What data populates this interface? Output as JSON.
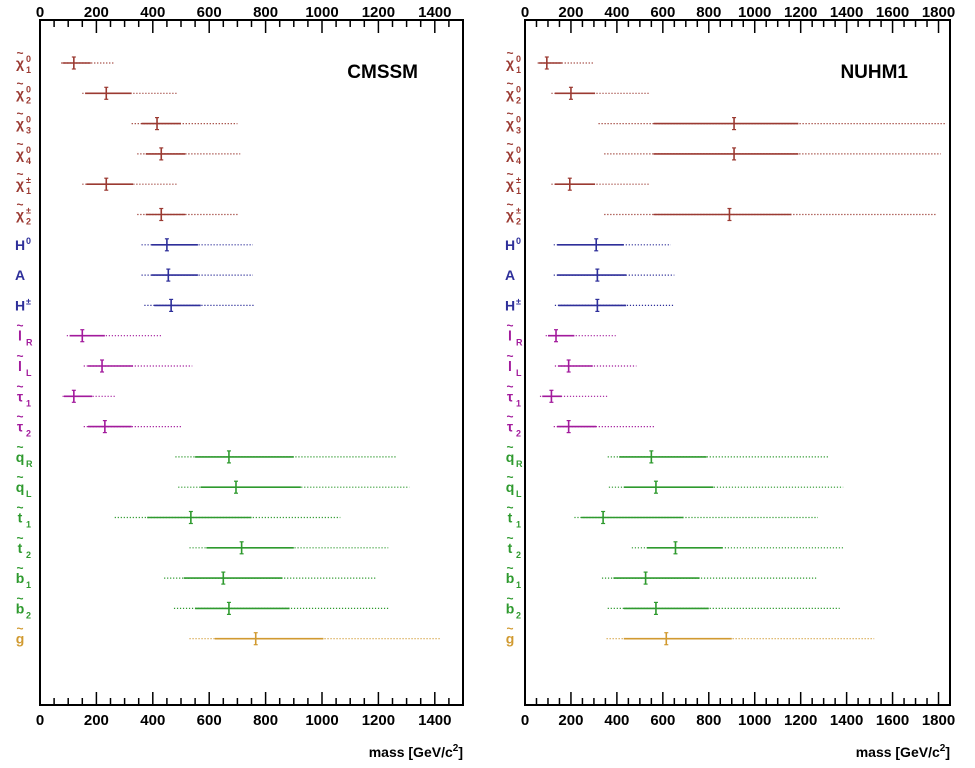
{
  "chart_data": [
    {
      "type": "scatter",
      "title": "CMSSM",
      "xlabel": "mass [GeV/c",
      "xlabel_sup": "2",
      "xlabel_close": "]",
      "xlim": [
        0,
        1500
      ],
      "xticks": [
        0,
        200,
        400,
        600,
        800,
        1000,
        1200,
        1400
      ],
      "xtick_labels": [
        "0",
        "200",
        "400",
        "600",
        "800",
        "1000",
        "1200",
        "1400"
      ],
      "x_minor_step": 50,
      "particles": [
        {
          "label": "χ",
          "sub": "1",
          "sup": "0",
          "tilde": true,
          "group": "gaugino",
          "best": 120,
          "s1": [
            80,
            180
          ],
          "s2": [
            75,
            265
          ]
        },
        {
          "label": "χ",
          "sub": "2",
          "sup": "0",
          "tilde": true,
          "group": "gaugino",
          "best": 235,
          "s1": [
            160,
            325
          ],
          "s2": [
            150,
            485
          ]
        },
        {
          "label": "χ",
          "sub": "3",
          "sup": "0",
          "tilde": true,
          "group": "gaugino",
          "best": 415,
          "s1": [
            360,
            500
          ],
          "s2": [
            325,
            700
          ]
        },
        {
          "label": "χ",
          "sub": "4",
          "sup": "0",
          "tilde": true,
          "group": "gaugino",
          "best": 430,
          "s1": [
            375,
            515
          ],
          "s2": [
            345,
            710
          ]
        },
        {
          "label": "χ",
          "sub": "1",
          "sup": "±",
          "tilde": true,
          "group": "gaugino",
          "best": 235,
          "s1": [
            165,
            330
          ],
          "s2": [
            150,
            490
          ]
        },
        {
          "label": "χ",
          "sub": "2",
          "sup": "±",
          "tilde": true,
          "group": "gaugino",
          "best": 430,
          "s1": [
            375,
            515
          ],
          "s2": [
            345,
            705
          ]
        },
        {
          "label": "H",
          "sub": "",
          "sup": "0",
          "tilde": false,
          "group": "higgs",
          "best": 450,
          "s1": [
            395,
            560
          ],
          "s2": [
            360,
            755
          ]
        },
        {
          "label": "A",
          "sub": "",
          "sup": "",
          "tilde": false,
          "group": "higgs",
          "best": 455,
          "s1": [
            395,
            560
          ],
          "s2": [
            360,
            755
          ]
        },
        {
          "label": "H",
          "sub": "",
          "sup": "±",
          "tilde": false,
          "group": "higgs",
          "best": 465,
          "s1": [
            405,
            570
          ],
          "s2": [
            370,
            760
          ]
        },
        {
          "label": "l",
          "sub": "R",
          "sup": "",
          "tilde": true,
          "group": "slepton",
          "best": 150,
          "s1": [
            105,
            230
          ],
          "s2": [
            95,
            435
          ]
        },
        {
          "label": "l",
          "sub": "L",
          "sup": "",
          "tilde": true,
          "group": "slepton",
          "best": 220,
          "s1": [
            170,
            330
          ],
          "s2": [
            155,
            540
          ]
        },
        {
          "label": "τ",
          "sub": "1",
          "sup": "",
          "tilde": true,
          "group": "slepton",
          "best": 120,
          "s1": [
            85,
            185
          ],
          "s2": [
            80,
            270
          ]
        },
        {
          "label": "τ",
          "sub": "2",
          "sup": "",
          "tilde": true,
          "group": "slepton",
          "best": 230,
          "s1": [
            170,
            325
          ],
          "s2": [
            155,
            500
          ]
        },
        {
          "label": "q",
          "sub": "R",
          "sup": "",
          "tilde": true,
          "group": "squark",
          "best": 670,
          "s1": [
            550,
            900
          ],
          "s2": [
            480,
            1265
          ]
        },
        {
          "label": "q",
          "sub": "L",
          "sup": "",
          "tilde": true,
          "group": "squark",
          "best": 695,
          "s1": [
            570,
            925
          ],
          "s2": [
            490,
            1310
          ]
        },
        {
          "label": "t",
          "sub": "1",
          "sup": "",
          "tilde": true,
          "group": "squark",
          "best": 535,
          "s1": [
            380,
            750
          ],
          "s2": [
            265,
            1065
          ]
        },
        {
          "label": "t",
          "sub": "2",
          "sup": "",
          "tilde": true,
          "group": "squark",
          "best": 715,
          "s1": [
            590,
            900
          ],
          "s2": [
            530,
            1235
          ]
        },
        {
          "label": "b",
          "sub": "1",
          "sup": "",
          "tilde": true,
          "group": "squark",
          "best": 650,
          "s1": [
            510,
            860
          ],
          "s2": [
            440,
            1195
          ]
        },
        {
          "label": "b",
          "sub": "2",
          "sup": "",
          "tilde": true,
          "group": "squark",
          "best": 670,
          "s1": [
            550,
            885
          ],
          "s2": [
            475,
            1235
          ]
        },
        {
          "label": "g",
          "sub": "",
          "sup": "",
          "tilde": true,
          "group": "gluino",
          "best": 765,
          "s1": [
            620,
            1005
          ],
          "s2": [
            530,
            1420
          ]
        }
      ]
    },
    {
      "type": "scatter",
      "title": "NUHM1",
      "xlabel": "mass [GeV/c",
      "xlabel_sup": "2",
      "xlabel_close": "]",
      "xlim": [
        0,
        1850
      ],
      "xticks": [
        0,
        200,
        400,
        600,
        800,
        1000,
        1200,
        1400,
        1600,
        1800
      ],
      "xtick_labels": [
        "0",
        "200",
        "400",
        "600",
        "800",
        "1000",
        "1200",
        "1400",
        "1600",
        "1800"
      ],
      "x_minor_step": 50,
      "particles": [
        {
          "label": "χ",
          "sub": "1",
          "sup": "0",
          "tilde": true,
          "group": "gaugino",
          "best": 95,
          "s1": [
            60,
            160
          ],
          "s2": [
            55,
            300
          ]
        },
        {
          "label": "χ",
          "sub": "2",
          "sup": "0",
          "tilde": true,
          "group": "gaugino",
          "best": 200,
          "s1": [
            130,
            305
          ],
          "s2": [
            115,
            545
          ]
        },
        {
          "label": "χ",
          "sub": "3",
          "sup": "0",
          "tilde": true,
          "group": "gaugino",
          "best": 910,
          "s1": [
            560,
            1190
          ],
          "s2": [
            320,
            1835
          ]
        },
        {
          "label": "χ",
          "sub": "4",
          "sup": "0",
          "tilde": true,
          "group": "gaugino",
          "best": 910,
          "s1": [
            560,
            1190
          ],
          "s2": [
            345,
            1810
          ]
        },
        {
          "label": "χ",
          "sub": "1",
          "sup": "±",
          "tilde": true,
          "group": "gaugino",
          "best": 195,
          "s1": [
            130,
            305
          ],
          "s2": [
            115,
            545
          ]
        },
        {
          "label": "χ",
          "sub": "2",
          "sup": "±",
          "tilde": true,
          "group": "gaugino",
          "best": 890,
          "s1": [
            560,
            1160
          ],
          "s2": [
            345,
            1790
          ]
        },
        {
          "label": "H",
          "sub": "",
          "sup": "0",
          "tilde": false,
          "group": "higgs",
          "best": 310,
          "s1": [
            140,
            430
          ],
          "s2": [
            125,
            635
          ]
        },
        {
          "label": "A",
          "sub": "",
          "sup": "",
          "tilde": false,
          "group": "higgs",
          "best": 315,
          "s1": [
            140,
            440
          ],
          "s2": [
            125,
            650
          ]
        },
        {
          "label": "H",
          "sub": "",
          "sup": "±",
          "tilde": false,
          "group": "higgs",
          "best": 315,
          "s1": [
            145,
            440
          ],
          "s2": [
            130,
            645
          ]
        },
        {
          "label": "l",
          "sub": "R",
          "sup": "",
          "tilde": true,
          "group": "slepton",
          "best": 135,
          "s1": [
            100,
            215
          ],
          "s2": [
            90,
            395
          ]
        },
        {
          "label": "l",
          "sub": "L",
          "sup": "",
          "tilde": true,
          "group": "slepton",
          "best": 190,
          "s1": [
            145,
            295
          ],
          "s2": [
            130,
            485
          ]
        },
        {
          "label": "τ",
          "sub": "1",
          "sup": "",
          "tilde": true,
          "group": "slepton",
          "best": 115,
          "s1": [
            75,
            160
          ],
          "s2": [
            65,
            360
          ]
        },
        {
          "label": "τ",
          "sub": "2",
          "sup": "",
          "tilde": true,
          "group": "slepton",
          "best": 190,
          "s1": [
            140,
            310
          ],
          "s2": [
            125,
            565
          ]
        },
        {
          "label": "q",
          "sub": "R",
          "sup": "",
          "tilde": true,
          "group": "squark",
          "best": 550,
          "s1": [
            410,
            790
          ],
          "s2": [
            360,
            1320
          ]
        },
        {
          "label": "q",
          "sub": "L",
          "sup": "",
          "tilde": true,
          "group": "squark",
          "best": 570,
          "s1": [
            430,
            820
          ],
          "s2": [
            365,
            1385
          ]
        },
        {
          "label": "t",
          "sub": "1",
          "sup": "",
          "tilde": true,
          "group": "squark",
          "best": 340,
          "s1": [
            245,
            690
          ],
          "s2": [
            215,
            1275
          ]
        },
        {
          "label": "t",
          "sub": "2",
          "sup": "",
          "tilde": true,
          "group": "squark",
          "best": 655,
          "s1": [
            530,
            860
          ],
          "s2": [
            465,
            1390
          ]
        },
        {
          "label": "b",
          "sub": "1",
          "sup": "",
          "tilde": true,
          "group": "squark",
          "best": 525,
          "s1": [
            385,
            760
          ],
          "s2": [
            335,
            1270
          ]
        },
        {
          "label": "b",
          "sub": "2",
          "sup": "",
          "tilde": true,
          "group": "squark",
          "best": 570,
          "s1": [
            430,
            800
          ],
          "s2": [
            360,
            1370
          ]
        },
        {
          "label": "g",
          "sub": "",
          "sup": "",
          "tilde": true,
          "group": "gluino",
          "best": 615,
          "s1": [
            430,
            900
          ],
          "s2": [
            355,
            1520
          ]
        }
      ]
    }
  ],
  "colors": {
    "gaugino": "#9b3a32",
    "higgs": "#2e2f9a",
    "slepton": "#a21a9c",
    "squark": "#2e9a2e",
    "gluino": "#d19a30",
    "axis": "#000000"
  }
}
